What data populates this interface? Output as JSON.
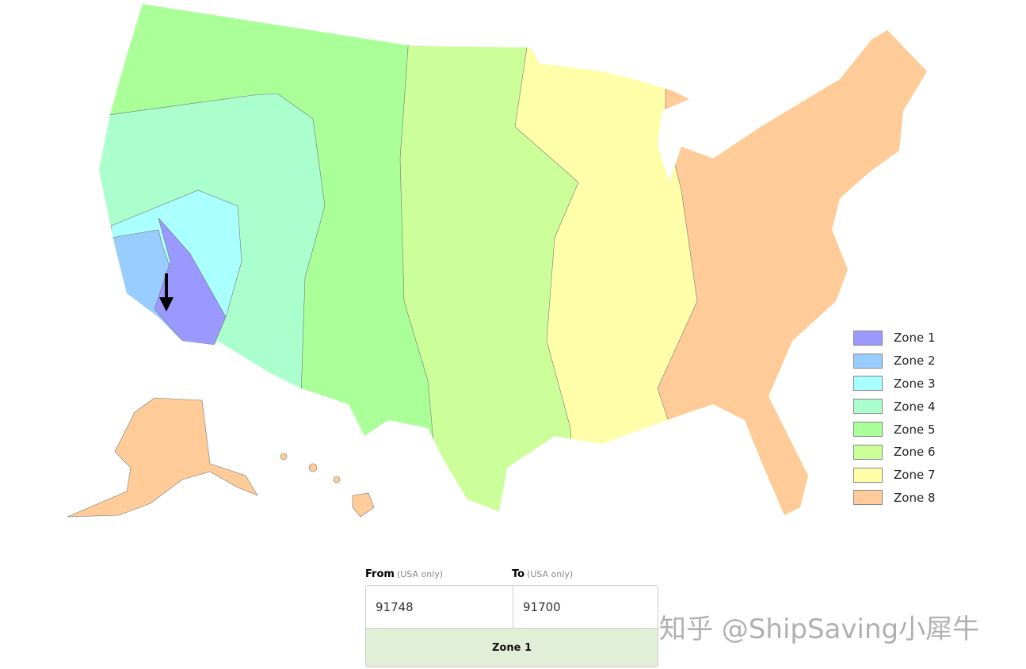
{
  "map": {
    "zone_colors": [
      "#9999ff",
      "#99ccff",
      "#aaffff",
      "#aaffcc",
      "#aaff99",
      "#ccff99",
      "#ffffaa",
      "#ffcc99"
    ],
    "origin_marker": "down-arrow-icon"
  },
  "legend": {
    "items": [
      {
        "label": "Zone 1",
        "color": "#9999ff"
      },
      {
        "label": "Zone 2",
        "color": "#99ccff"
      },
      {
        "label": "Zone 3",
        "color": "#aaffff"
      },
      {
        "label": "Zone 4",
        "color": "#aaffcc"
      },
      {
        "label": "Zone 5",
        "color": "#aaff99"
      },
      {
        "label": "Zone 6",
        "color": "#ccff99"
      },
      {
        "label": "Zone 7",
        "color": "#ffffaa"
      },
      {
        "label": "Zone 8",
        "color": "#ffcc99"
      }
    ]
  },
  "form": {
    "from_label": "From",
    "from_hint": "(USA only)",
    "from_value": "91748",
    "to_label": "To",
    "to_hint": "(USA only)",
    "to_value": "91700",
    "result": "Zone 1"
  },
  "watermark": "知乎 @ShipSaving小犀牛"
}
